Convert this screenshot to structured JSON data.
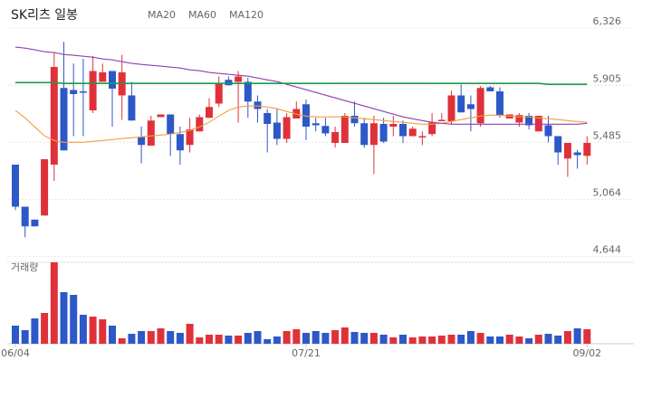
{
  "chart_data": [
    {
      "type": "candlestick",
      "title": "SK리츠 일봉",
      "up_color": "#e0313a",
      "down_color": "#2d58c8",
      "ylim": [
        4600,
        6400
      ],
      "yticks": [
        {
          "value": 6326,
          "label": "6,326"
        },
        {
          "value": 5905,
          "label": "5,905"
        },
        {
          "value": 5485,
          "label": "5,485"
        },
        {
          "value": 5064,
          "label": "5,064"
        },
        {
          "value": 4644,
          "label": "4,644"
        }
      ],
      "grid": true,
      "open": [
        5320,
        5010,
        4915,
        4945,
        5320,
        5885,
        5870,
        5860,
        5720,
        5930,
        6010,
        5830,
        5830,
        5525,
        5460,
        5670,
        5690,
        5545,
        5465,
        5565,
        5665,
        5770,
        5945,
        5930,
        5930,
        5785,
        5700,
        5630,
        5510,
        5660,
        5765,
        5625,
        5605,
        5480,
        5480,
        5680,
        5625,
        5465,
        5620,
        5600,
        5620,
        5530,
        5520,
        5545,
        5640,
        5640,
        5830,
        5765,
        5625,
        5890,
        5860,
        5660,
        5630,
        5680,
        5565,
        5610,
        5530,
        5365,
        5410,
        5385
      ],
      "high": [
        5320,
        5010,
        4915,
        5360,
        6145,
        6225,
        6065,
        6100,
        6120,
        6065,
        6010,
        6130,
        5930,
        5600,
        5680,
        5690,
        5690,
        5600,
        5665,
        5690,
        5810,
        5970,
        5970,
        6010,
        5960,
        5830,
        5730,
        5730,
        5700,
        5785,
        5800,
        5665,
        5665,
        5600,
        5700,
        5785,
        5665,
        5680,
        5665,
        5680,
        5645,
        5600,
        5565,
        5700,
        5700,
        5865,
        5910,
        5830,
        5900,
        5900,
        5890,
        5690,
        5700,
        5700,
        5680,
        5680,
        5530,
        5480,
        5430,
        5530
      ],
      "low": [
        4985,
        4785,
        4865,
        4945,
        5200,
        5425,
        5530,
        5530,
        5700,
        5930,
        5600,
        5650,
        5645,
        5330,
        5460,
        5670,
        5385,
        5320,
        5410,
        5565,
        5665,
        5745,
        5905,
        5630,
        5665,
        5630,
        5410,
        5465,
        5480,
        5660,
        5500,
        5565,
        5530,
        5445,
        5480,
        5600,
        5445,
        5250,
        5480,
        5530,
        5480,
        5530,
        5465,
        5530,
        5640,
        5620,
        5705,
        5565,
        5600,
        5860,
        5665,
        5660,
        5600,
        5580,
        5565,
        5485,
        5320,
        5230,
        5290,
        5320
      ],
      "close": [
        5010,
        4865,
        4865,
        5360,
        6040,
        5425,
        5840,
        5850,
        6010,
        6000,
        5880,
        6000,
        5645,
        5465,
        5645,
        5690,
        5545,
        5425,
        5580,
        5670,
        5745,
        5920,
        5905,
        5970,
        5785,
        5730,
        5620,
        5510,
        5670,
        5730,
        5600,
        5610,
        5550,
        5560,
        5680,
        5625,
        5465,
        5625,
        5490,
        5620,
        5530,
        5585,
        5530,
        5630,
        5650,
        5830,
        5705,
        5730,
        5885,
        5860,
        5680,
        5690,
        5685,
        5610,
        5680,
        5530,
        5410,
        5480,
        5390,
        5480
      ],
      "series": [
        {
          "name": "MA20",
          "color": "#f0a040",
          "values": [
            5719,
            5665,
            5598,
            5532,
            5498,
            5485,
            5485,
            5485,
            5492,
            5498,
            5505,
            5512,
            5518,
            5525,
            5532,
            5538,
            5545,
            5558,
            5572,
            5598,
            5632,
            5678,
            5719,
            5745,
            5752,
            5752,
            5745,
            5732,
            5712,
            5692,
            5678,
            5672,
            5672,
            5672,
            5672,
            5665,
            5658,
            5652,
            5645,
            5638,
            5632,
            5625,
            5618,
            5618,
            5625,
            5638,
            5652,
            5665,
            5678,
            5685,
            5685,
            5678,
            5672,
            5672,
            5665,
            5658,
            5652,
            5645,
            5638,
            5632
          ]
        },
        {
          "name": "MA60",
          "color": "#9040b0",
          "values": [
            6186,
            6179,
            6166,
            6152,
            6146,
            6132,
            6126,
            6119,
            6112,
            6099,
            6092,
            6079,
            6066,
            6059,
            6052,
            6046,
            6039,
            6032,
            6019,
            6012,
            5999,
            5992,
            5986,
            5979,
            5972,
            5959,
            5945,
            5932,
            5912,
            5892,
            5872,
            5852,
            5832,
            5812,
            5792,
            5772,
            5752,
            5732,
            5712,
            5692,
            5672,
            5658,
            5645,
            5632,
            5625,
            5618,
            5618,
            5618,
            5618,
            5618,
            5618,
            5618,
            5618,
            5618,
            5618,
            5618,
            5618,
            5618,
            5618,
            5625
          ]
        },
        {
          "name": "MA120",
          "color": "#1f9a4c",
          "values": [
            5925,
            5925,
            5925,
            5925,
            5925,
            5919,
            5919,
            5919,
            5919,
            5919,
            5919,
            5919,
            5919,
            5919,
            5919,
            5919,
            5919,
            5919,
            5919,
            5919,
            5919,
            5919,
            5919,
            5919,
            5919,
            5919,
            5919,
            5919,
            5919,
            5919,
            5919,
            5919,
            5919,
            5919,
            5919,
            5919,
            5919,
            5919,
            5919,
            5919,
            5919,
            5919,
            5919,
            5919,
            5919,
            5919,
            5919,
            5919,
            5919,
            5919,
            5919,
            5919,
            5919,
            5919,
            5919,
            5912,
            5912,
            5912,
            5912,
            5912
          ]
        }
      ]
    },
    {
      "type": "bar",
      "title": "거래량",
      "ylim": [
        0,
        90
      ],
      "categories": [
        "06/04",
        null,
        null,
        null,
        null,
        null,
        null,
        null,
        null,
        null,
        null,
        null,
        null,
        null,
        null,
        null,
        null,
        null,
        null,
        null,
        null,
        null,
        null,
        null,
        null,
        null,
        null,
        null,
        null,
        null,
        "07/21",
        null,
        null,
        null,
        null,
        null,
        null,
        null,
        null,
        null,
        null,
        null,
        null,
        null,
        null,
        null,
        null,
        null,
        null,
        null,
        null,
        null,
        null,
        null,
        null,
        null,
        null,
        null,
        null,
        "09/02"
      ],
      "values": [
        20,
        15,
        28,
        34,
        90,
        57,
        54,
        32,
        30,
        27,
        20,
        6,
        11,
        14,
        14,
        17,
        14,
        12,
        22,
        7,
        10,
        10,
        9,
        9,
        12,
        14,
        5,
        8,
        14,
        16,
        12,
        14,
        12,
        15,
        18,
        13,
        12,
        12,
        10,
        7,
        10,
        7,
        8,
        8,
        9,
        10,
        10,
        14,
        12,
        8,
        8,
        10,
        8,
        6,
        10,
        11,
        9,
        14,
        17,
        16
      ]
    }
  ]
}
